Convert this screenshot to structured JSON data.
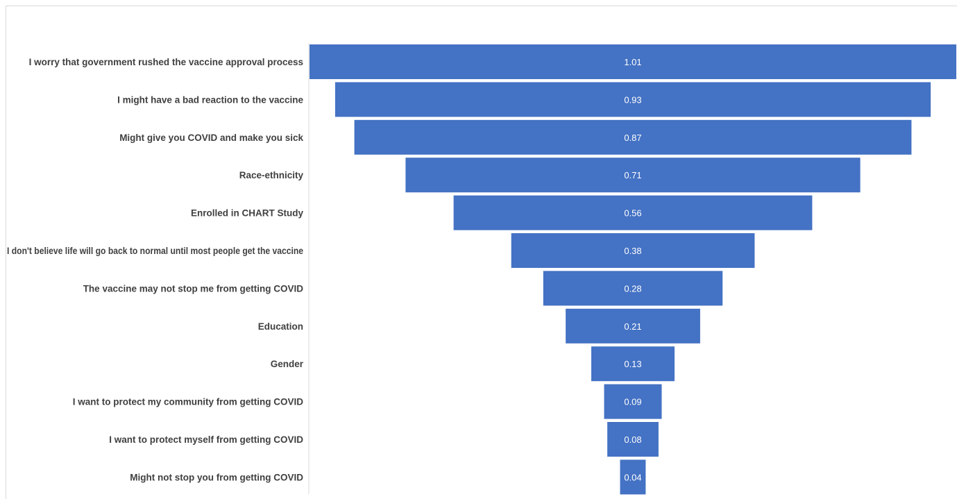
{
  "chart_data": {
    "type": "bar",
    "orientation": "horizontal",
    "style": "funnel",
    "categories": [
      "I worry that government rushed the vaccine approval process",
      "I might have a bad reaction to the vaccine",
      "Might give you COVID and make you sick",
      "Race-ethnicity",
      "Enrolled in CHART Study",
      "I don't believe life will go back to normal until most people get the vaccine",
      "The vaccine may not stop me from getting COVID",
      "Education",
      "Gender",
      "I want to protect my community from getting COVID",
      "I want to protect myself from getting COVID",
      "Might not stop you from getting COVID"
    ],
    "values": [
      1.01,
      0.93,
      0.87,
      0.71,
      0.56,
      0.38,
      0.28,
      0.21,
      0.13,
      0.09,
      0.08,
      0.04
    ],
    "value_labels": [
      "1.01",
      "0.93",
      "0.87",
      "0.71",
      "0.56",
      "0.38",
      "0.28",
      "0.21",
      "0.13",
      "0.09",
      "0.08",
      "0.04"
    ],
    "title": "",
    "xlabel": "",
    "ylabel": "",
    "grid": false,
    "legend": "none",
    "bar_color": "#4472c4"
  }
}
